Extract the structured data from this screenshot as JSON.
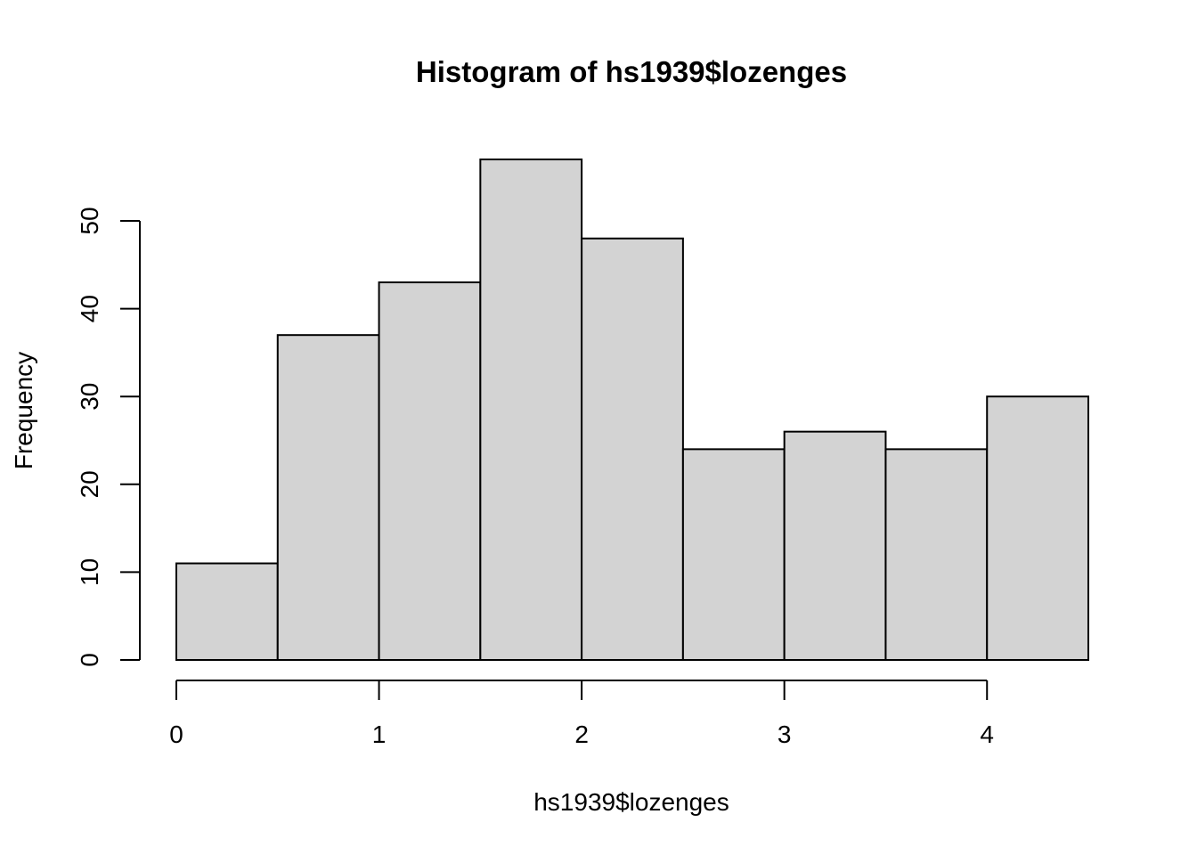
{
  "chart_data": {
    "type": "bar",
    "title": "Histogram of hs1939$lozenges",
    "xlabel": "hs1939$lozenges",
    "ylabel": "Frequency",
    "bin_edges": [
      0,
      0.5,
      1,
      1.5,
      2,
      2.5,
      3,
      3.5,
      4,
      4.5
    ],
    "values": [
      11,
      37,
      43,
      57,
      48,
      24,
      26,
      24,
      30
    ],
    "xlim": [
      0,
      4.5
    ],
    "ylim": [
      0,
      57
    ],
    "x_ticks": [
      0,
      1,
      2,
      3,
      4
    ],
    "y_ticks": [
      0,
      10,
      20,
      30,
      40,
      50
    ],
    "bar_color": "#d3d3d3",
    "grid": false
  }
}
